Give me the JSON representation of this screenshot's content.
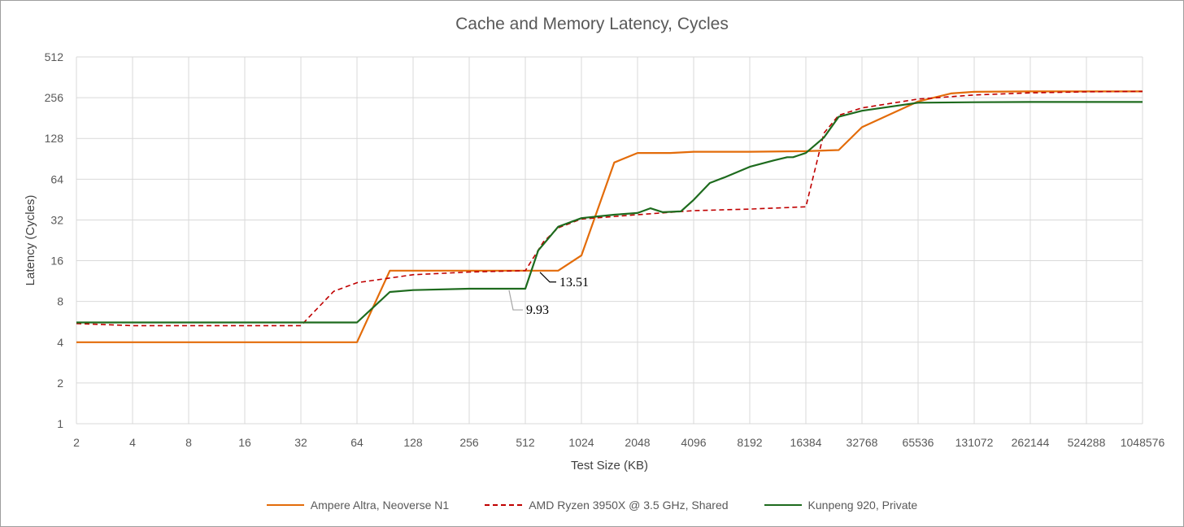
{
  "chart_data": {
    "type": "line",
    "title": "Cache and Memory Latency, Cycles",
    "xlabel": "Test Size (KB)",
    "ylabel": "Latency (Cycles)",
    "x_scale": "log2",
    "y_scale": "log2",
    "xlim": [
      2,
      1048576
    ],
    "ylim": [
      1,
      512
    ],
    "x_ticks": [
      "2",
      "4",
      "8",
      "16",
      "32",
      "64",
      "128",
      "256",
      "512",
      "1024",
      "2048",
      "4096",
      "8192",
      "16384",
      "32768",
      "65536",
      "131072",
      "262144",
      "524288",
      "1048576"
    ],
    "y_ticks": [
      "1",
      "2",
      "4",
      "8",
      "16",
      "32",
      "64",
      "128",
      "256",
      "512"
    ],
    "grid": true,
    "legend_position": "bottom",
    "series": [
      {
        "name": "Ampere Altra, Neoverse N1",
        "color": "#E36C0A",
        "style": "solid",
        "x": [
          2,
          64,
          96,
          128,
          256,
          512,
          768,
          1024,
          1536,
          2048,
          3072,
          4096,
          8192,
          16384,
          24576,
          32768,
          65536,
          98304,
          131072,
          262144,
          524288,
          1048576
        ],
        "y": [
          4,
          4,
          13.51,
          13.51,
          13.51,
          13.51,
          13.51,
          17.5,
          85,
          100,
          100,
          102,
          102,
          103,
          105,
          155,
          240,
          275,
          283,
          285,
          285,
          285
        ]
      },
      {
        "name": "AMD Ryzen 3950X @ 3.5 GHz, Shared",
        "color": "#C00000",
        "style": "dashed",
        "x": [
          2,
          4,
          8,
          16,
          32,
          48,
          64,
          128,
          256,
          512,
          640,
          768,
          1024,
          2048,
          4096,
          8192,
          16384,
          20480,
          24576,
          32768,
          65536,
          131072,
          262144,
          524288,
          1048576
        ],
        "y": [
          5.5,
          5.3,
          5.3,
          5.3,
          5.3,
          9.5,
          11,
          12.6,
          13.2,
          13.51,
          22,
          28,
          32.5,
          35,
          37.5,
          38.5,
          40,
          140,
          190,
          215,
          250,
          268,
          278,
          283,
          285
        ]
      },
      {
        "name": "Kunpeng 920, Private",
        "color": "#1E6B1E",
        "style": "solid",
        "x": [
          2,
          64,
          96,
          128,
          256,
          512,
          600,
          768,
          1024,
          1536,
          2048,
          2400,
          2800,
          3500,
          4096,
          5000,
          6000,
          8192,
          11000,
          13000,
          14000,
          15000,
          16384,
          20480,
          24576,
          32768,
          65536,
          131072,
          262144,
          524288,
          1048576
        ],
        "y": [
          5.6,
          5.6,
          9.4,
          9.7,
          9.93,
          9.93,
          19,
          28.5,
          33,
          35,
          36,
          39,
          36.5,
          37,
          45,
          60,
          66,
          79,
          88,
          93,
          93,
          96,
          100,
          130,
          185,
          205,
          235,
          237,
          238,
          238,
          238
        ]
      }
    ],
    "annotations": [
      {
        "text": "13.51",
        "x": 512,
        "y": 13.51,
        "series": "Ampere Altra, Neoverse N1"
      },
      {
        "text": "9.93",
        "x": 512,
        "y": 9.93,
        "series": "Kunpeng 920, Private"
      }
    ]
  }
}
